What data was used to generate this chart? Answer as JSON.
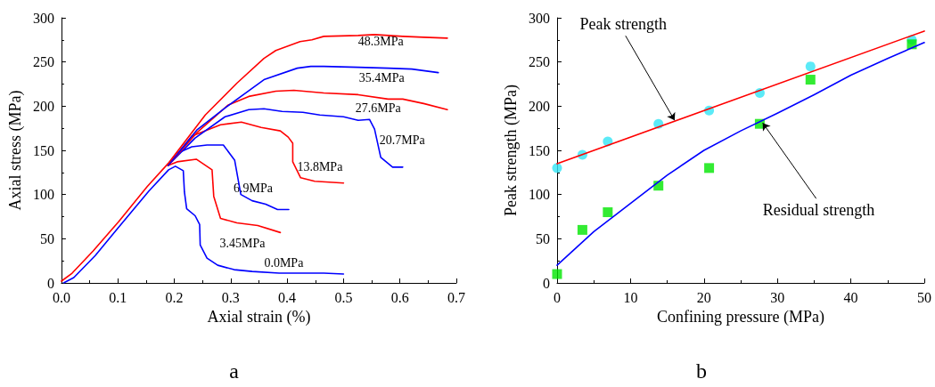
{
  "chart_data": [
    {
      "type": "line",
      "xlabel": "Axial strain (%)",
      "ylabel": "Axial stress (MPa)",
      "annotations": [
        "a"
      ],
      "xlim": [
        0,
        0.7
      ],
      "xticks": [
        {
          "value": 0,
          "label": "0.0"
        },
        0.1,
        0.2,
        0.3,
        0.4,
        0.5,
        0.6,
        0.7
      ],
      "ylim": [
        0,
        300
      ],
      "yticks": [
        0,
        50,
        100,
        150,
        200,
        250,
        300
      ],
      "grid": false,
      "legend": false,
      "marker": "none",
      "line_style": "solid",
      "series": [
        {
          "name": "0.0MPa",
          "color": "#0000ff",
          "x": [
            0.004,
            0.022,
            0.06,
            0.104,
            0.155,
            0.19,
            0.202,
            0.216,
            0.218,
            0.222,
            0.237,
            0.245,
            0.246,
            0.258,
            0.277,
            0.306,
            0.338,
            0.386,
            0.465,
            0.5
          ],
          "values": [
            0,
            6,
            31,
            65,
            104,
            128,
            132,
            127,
            103,
            84,
            76,
            66,
            43,
            28,
            20,
            15,
            13,
            11,
            11,
            10
          ]
        },
        {
          "name": "3.45MPa",
          "color": "#ff0000",
          "x": [
            0.189,
            0.205,
            0.239,
            0.267,
            0.27,
            0.282,
            0.311,
            0.348,
            0.388
          ],
          "values": [
            133,
            137,
            140,
            128,
            98,
            73,
            68,
            65,
            57
          ]
        },
        {
          "name": "6.9MPa",
          "color": "#0000ff",
          "x": [
            0.189,
            0.21,
            0.231,
            0.258,
            0.287,
            0.307,
            0.318,
            0.338,
            0.362,
            0.383,
            0.403
          ],
          "values": [
            133,
            148,
            154,
            156,
            156,
            139,
            100,
            93,
            89,
            83,
            83
          ]
        },
        {
          "name": "13.8MPa",
          "color": "#ff0000",
          "x": [
            0.189,
            0.231,
            0.282,
            0.319,
            0.354,
            0.388,
            0.402,
            0.41,
            0.41,
            0.424,
            0.449,
            0.5
          ],
          "values": [
            133,
            166,
            179,
            182,
            176,
            172,
            165,
            158,
            137,
            119,
            115,
            113
          ]
        },
        {
          "name": "20.7MPa",
          "color": "#0000ff",
          "x": [
            0.189,
            0.237,
            0.29,
            0.332,
            0.359,
            0.391,
            0.428,
            0.458,
            0.5,
            0.526,
            0.546,
            0.555,
            0.566,
            0.587,
            0.605
          ],
          "values": [
            133,
            164,
            188,
            196,
            197,
            194,
            193,
            190,
            188,
            184,
            185,
            174,
            142,
            131,
            131
          ]
        },
        {
          "name": "27.6MPa",
          "color": "#ff0000",
          "x": [
            0.189,
            0.24,
            0.295,
            0.332,
            0.38,
            0.412,
            0.465,
            0.526,
            0.579,
            0.605,
            0.642,
            0.684
          ],
          "values": [
            133,
            170,
            201,
            211,
            217,
            218,
            215,
            213,
            208,
            208,
            203,
            196
          ]
        },
        {
          "name": "35.4MPa",
          "color": "#0000ff",
          "x": [
            0.189,
            0.24,
            0.29,
            0.359,
            0.418,
            0.442,
            0.465,
            0.526,
            0.579,
            0.621,
            0.668
          ],
          "values": [
            133,
            173,
            198,
            230,
            243,
            245,
            245,
            244,
            243,
            242,
            238
          ]
        },
        {
          "name": "48.3MPa",
          "color": "#ff0000",
          "x": [
            0,
            0.019,
            0.056,
            0.101,
            0.152,
            0.189,
            0.255,
            0.311,
            0.359,
            0.38,
            0.423,
            0.444,
            0.465,
            0.526,
            0.555,
            0.605,
            0.642,
            0.684
          ],
          "values": [
            2,
            11,
            36,
            69,
            109,
            135,
            190,
            226,
            254,
            263,
            273,
            275,
            279,
            280,
            281,
            279,
            278,
            277
          ]
        }
      ]
    },
    {
      "type": "scatter",
      "xlabel": "Confining pressure (MPa)",
      "ylabel": "Peak strength (MPa)",
      "annotations": [
        "b",
        {
          "text": "Peak strength",
          "x": 16,
          "y": 184
        },
        {
          "text": "Residual strength",
          "x": 28,
          "y": 181
        }
      ],
      "xlim": [
        0,
        50
      ],
      "xticks": [
        0,
        10,
        20,
        30,
        40,
        50
      ],
      "ylim": [
        0,
        300
      ],
      "yticks": [
        0,
        50,
        100,
        150,
        200,
        250,
        300
      ],
      "grid": false,
      "legend": false,
      "series": [
        {
          "type": "line",
          "color": "#ff0000",
          "marker": "none",
          "line_style": "solid",
          "x": [
            0,
            50
          ],
          "values": [
            135,
            285
          ]
        },
        {
          "type": "line",
          "color": "#0000ff",
          "marker": "none",
          "line_style": "solid",
          "x": [
            0,
            5,
            10,
            15,
            20,
            25,
            30,
            35,
            40,
            45,
            50
          ],
          "values": [
            20,
            58,
            90,
            122,
            150,
            172,
            192,
            213,
            235,
            254,
            272
          ]
        },
        {
          "color": "#33e5f5",
          "marker": "circle",
          "x": [
            0,
            3.45,
            6.9,
            13.8,
            20.7,
            27.6,
            34.5,
            48.3
          ],
          "values": [
            130,
            145,
            160,
            180,
            195,
            215,
            245,
            275
          ]
        },
        {
          "color": "#00e600",
          "marker": "square",
          "x": [
            0,
            3.45,
            6.9,
            13.8,
            20.7,
            27.6,
            34.5,
            48.3
          ],
          "values": [
            10,
            60,
            80,
            110,
            130,
            180,
            230,
            270
          ]
        }
      ]
    }
  ]
}
